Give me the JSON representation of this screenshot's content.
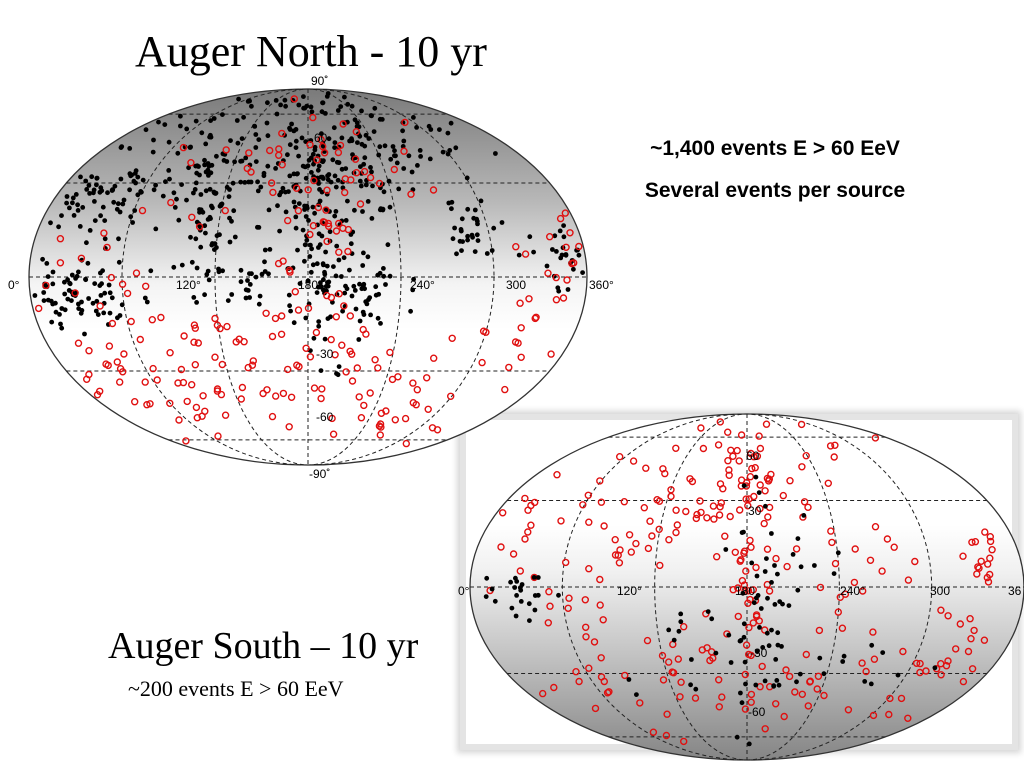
{
  "north": {
    "title": "Auger North - 10 yr",
    "note_line1": "~1,400 events E > 60 EeV",
    "note_line2": "Several events per source"
  },
  "south": {
    "title": "Auger South – 10 yr",
    "note": "~200 events E > 60 EeV"
  },
  "chart_data": [
    {
      "type": "scatter",
      "title": "Auger North - 10 yr",
      "projection": "Aitoff/Hammer all-sky",
      "x_ticks": [
        "0°",
        "120°",
        "180",
        "240°",
        "300",
        "360°"
      ],
      "y_ticks": [
        "90˚",
        "60",
        "-30",
        "-60",
        "-90˚"
      ],
      "xlim": [
        0,
        360
      ],
      "ylim": [
        -90,
        90
      ],
      "grid": true,
      "series": [
        {
          "color": "#000000",
          "marker": "filled-dot"
        },
        {
          "color": "#e01010",
          "marker": "open-circle"
        }
      ]
    },
    {
      "type": "scatter",
      "title": "Auger South – 10 yr",
      "projection": "Aitoff/Hammer all-sky",
      "x_ticks": [
        "0°",
        "120°",
        "180",
        "240°",
        "300",
        "36"
      ],
      "y_ticks": [
        "60",
        "30",
        "-30",
        "-60"
      ],
      "xlim": [
        0,
        360
      ],
      "ylim": [
        -90,
        90
      ],
      "grid": true,
      "series": [
        {
          "color": "#e01010",
          "marker": "open-circle"
        },
        {
          "color": "#000000",
          "marker": "filled-dot"
        }
      ]
    }
  ]
}
